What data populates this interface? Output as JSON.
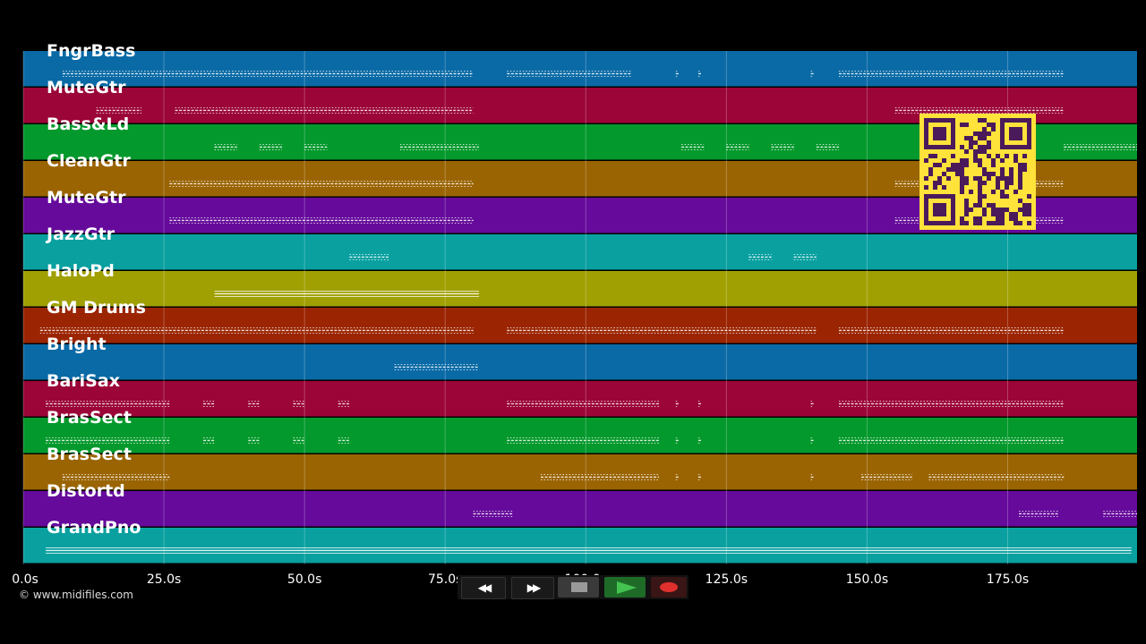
{
  "copyright": "© www.midifiles.com",
  "chart_data": {
    "type": "piano-roll",
    "xlim": [
      0,
      198
    ],
    "x_ticks": [
      "0.0s",
      "25.0s",
      "50.0s",
      "75.0s",
      "100.0s",
      "125.0s",
      "150.0s",
      "175.0s"
    ],
    "tracks": [
      {
        "name": "FngrBass",
        "color": "#0a6aa6",
        "segments": [
          [
            7,
            80
          ],
          [
            86,
            108
          ],
          [
            116,
            116
          ],
          [
            120,
            120
          ],
          [
            140,
            140
          ],
          [
            145,
            185
          ]
        ]
      },
      {
        "name": "MuteGtr",
        "color": "#9b0537",
        "segments": [
          [
            13,
            21
          ],
          [
            27,
            80
          ],
          [
            155,
            185
          ]
        ]
      },
      {
        "name": "Bass&Ld",
        "color": "#04992c",
        "segments": [
          [
            34,
            38
          ],
          [
            42,
            46
          ],
          [
            50,
            54
          ],
          [
            67,
            81
          ],
          [
            117,
            121
          ],
          [
            125,
            129
          ],
          [
            133,
            137
          ],
          [
            141,
            145
          ],
          [
            185,
            198
          ]
        ]
      },
      {
        "name": "CleanGtr",
        "color": "#9a6403",
        "segments": [
          [
            26,
            80
          ],
          [
            155,
            185
          ]
        ]
      },
      {
        "name": "MuteGtr",
        "color": "#650a9b",
        "segments": [
          [
            26,
            80
          ],
          [
            155,
            185
          ]
        ]
      },
      {
        "name": "JazzGtr",
        "color": "#0aa0a0",
        "segments": [
          [
            58,
            65
          ],
          [
            129,
            133
          ],
          [
            137,
            141
          ]
        ]
      },
      {
        "name": "HaloPd",
        "color": "#a0a003",
        "segments": [
          [
            34,
            81
          ]
        ]
      },
      {
        "name": "GM Drums",
        "color": "#9b2503",
        "segments": [
          [
            3,
            80
          ],
          [
            86,
            141
          ],
          [
            145,
            185
          ]
        ]
      },
      {
        "name": "Bright",
        "color": "#0a6aa6",
        "segments": [
          [
            66,
            81
          ]
        ]
      },
      {
        "name": "BariSax",
        "color": "#9b0537",
        "segments": [
          [
            4,
            26
          ],
          [
            32,
            34
          ],
          [
            40,
            42
          ],
          [
            48,
            50
          ],
          [
            56,
            58
          ],
          [
            86,
            113
          ],
          [
            116,
            116
          ],
          [
            120,
            120
          ],
          [
            140,
            140
          ],
          [
            145,
            185
          ]
        ]
      },
      {
        "name": "BrasSect",
        "color": "#04992c",
        "segments": [
          [
            4,
            26
          ],
          [
            32,
            34
          ],
          [
            40,
            42
          ],
          [
            48,
            50
          ],
          [
            56,
            58
          ],
          [
            86,
            113
          ],
          [
            116,
            116
          ],
          [
            120,
            120
          ],
          [
            140,
            140
          ],
          [
            145,
            185
          ]
        ]
      },
      {
        "name": "BrasSect",
        "color": "#9a6403",
        "segments": [
          [
            7,
            26
          ],
          [
            92,
            113
          ],
          [
            116,
            116
          ],
          [
            120,
            120
          ],
          [
            140,
            140
          ],
          [
            149,
            158
          ],
          [
            161,
            185
          ]
        ]
      },
      {
        "name": "Distortd",
        "color": "#650a9b",
        "segments": [
          [
            80,
            87
          ],
          [
            177,
            184
          ],
          [
            192,
            198
          ]
        ]
      },
      {
        "name": "GrandPno",
        "color": "#0aa0a0",
        "segments": [
          [
            4,
            197
          ]
        ]
      }
    ]
  },
  "controls": {
    "rewind_glyph": "◀◀",
    "forward_glyph": "▶▶"
  }
}
